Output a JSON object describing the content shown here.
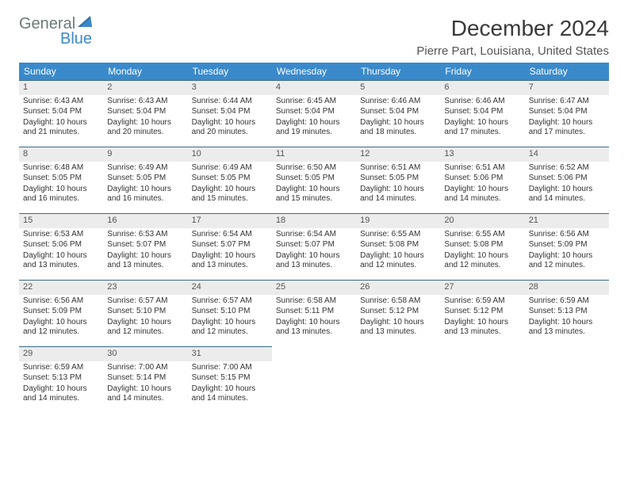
{
  "logo": {
    "line1": "General",
    "line2": "Blue"
  },
  "title": "December 2024",
  "location": "Pierre Part, Louisiana, United States",
  "colors": {
    "header_bg": "#3a8acb",
    "header_fg": "#ffffff",
    "daynum_bg": "#ececec",
    "daynum_border": "#3a6a8a",
    "page_bg": "#ffffff",
    "text": "#333333",
    "logo_gray": "#6b7a7a",
    "logo_blue": "#3a8acb"
  },
  "dayNames": [
    "Sunday",
    "Monday",
    "Tuesday",
    "Wednesday",
    "Thursday",
    "Friday",
    "Saturday"
  ],
  "weeks": [
    [
      {
        "d": "1",
        "sr": "6:43 AM",
        "ss": "5:04 PM",
        "dl": "10 hours and 21 minutes."
      },
      {
        "d": "2",
        "sr": "6:43 AM",
        "ss": "5:04 PM",
        "dl": "10 hours and 20 minutes."
      },
      {
        "d": "3",
        "sr": "6:44 AM",
        "ss": "5:04 PM",
        "dl": "10 hours and 20 minutes."
      },
      {
        "d": "4",
        "sr": "6:45 AM",
        "ss": "5:04 PM",
        "dl": "10 hours and 19 minutes."
      },
      {
        "d": "5",
        "sr": "6:46 AM",
        "ss": "5:04 PM",
        "dl": "10 hours and 18 minutes."
      },
      {
        "d": "6",
        "sr": "6:46 AM",
        "ss": "5:04 PM",
        "dl": "10 hours and 17 minutes."
      },
      {
        "d": "7",
        "sr": "6:47 AM",
        "ss": "5:04 PM",
        "dl": "10 hours and 17 minutes."
      }
    ],
    [
      {
        "d": "8",
        "sr": "6:48 AM",
        "ss": "5:05 PM",
        "dl": "10 hours and 16 minutes."
      },
      {
        "d": "9",
        "sr": "6:49 AM",
        "ss": "5:05 PM",
        "dl": "10 hours and 16 minutes."
      },
      {
        "d": "10",
        "sr": "6:49 AM",
        "ss": "5:05 PM",
        "dl": "10 hours and 15 minutes."
      },
      {
        "d": "11",
        "sr": "6:50 AM",
        "ss": "5:05 PM",
        "dl": "10 hours and 15 minutes."
      },
      {
        "d": "12",
        "sr": "6:51 AM",
        "ss": "5:05 PM",
        "dl": "10 hours and 14 minutes."
      },
      {
        "d": "13",
        "sr": "6:51 AM",
        "ss": "5:06 PM",
        "dl": "10 hours and 14 minutes."
      },
      {
        "d": "14",
        "sr": "6:52 AM",
        "ss": "5:06 PM",
        "dl": "10 hours and 14 minutes."
      }
    ],
    [
      {
        "d": "15",
        "sr": "6:53 AM",
        "ss": "5:06 PM",
        "dl": "10 hours and 13 minutes."
      },
      {
        "d": "16",
        "sr": "6:53 AM",
        "ss": "5:07 PM",
        "dl": "10 hours and 13 minutes."
      },
      {
        "d": "17",
        "sr": "6:54 AM",
        "ss": "5:07 PM",
        "dl": "10 hours and 13 minutes."
      },
      {
        "d": "18",
        "sr": "6:54 AM",
        "ss": "5:07 PM",
        "dl": "10 hours and 13 minutes."
      },
      {
        "d": "19",
        "sr": "6:55 AM",
        "ss": "5:08 PM",
        "dl": "10 hours and 12 minutes."
      },
      {
        "d": "20",
        "sr": "6:55 AM",
        "ss": "5:08 PM",
        "dl": "10 hours and 12 minutes."
      },
      {
        "d": "21",
        "sr": "6:56 AM",
        "ss": "5:09 PM",
        "dl": "10 hours and 12 minutes."
      }
    ],
    [
      {
        "d": "22",
        "sr": "6:56 AM",
        "ss": "5:09 PM",
        "dl": "10 hours and 12 minutes."
      },
      {
        "d": "23",
        "sr": "6:57 AM",
        "ss": "5:10 PM",
        "dl": "10 hours and 12 minutes."
      },
      {
        "d": "24",
        "sr": "6:57 AM",
        "ss": "5:10 PM",
        "dl": "10 hours and 12 minutes."
      },
      {
        "d": "25",
        "sr": "6:58 AM",
        "ss": "5:11 PM",
        "dl": "10 hours and 13 minutes."
      },
      {
        "d": "26",
        "sr": "6:58 AM",
        "ss": "5:12 PM",
        "dl": "10 hours and 13 minutes."
      },
      {
        "d": "27",
        "sr": "6:59 AM",
        "ss": "5:12 PM",
        "dl": "10 hours and 13 minutes."
      },
      {
        "d": "28",
        "sr": "6:59 AM",
        "ss": "5:13 PM",
        "dl": "10 hours and 13 minutes."
      }
    ],
    [
      {
        "d": "29",
        "sr": "6:59 AM",
        "ss": "5:13 PM",
        "dl": "10 hours and 14 minutes."
      },
      {
        "d": "30",
        "sr": "7:00 AM",
        "ss": "5:14 PM",
        "dl": "10 hours and 14 minutes."
      },
      {
        "d": "31",
        "sr": "7:00 AM",
        "ss": "5:15 PM",
        "dl": "10 hours and 14 minutes."
      },
      null,
      null,
      null,
      null
    ]
  ],
  "labels": {
    "sunrise": "Sunrise:",
    "sunset": "Sunset:",
    "daylight": "Daylight:"
  }
}
